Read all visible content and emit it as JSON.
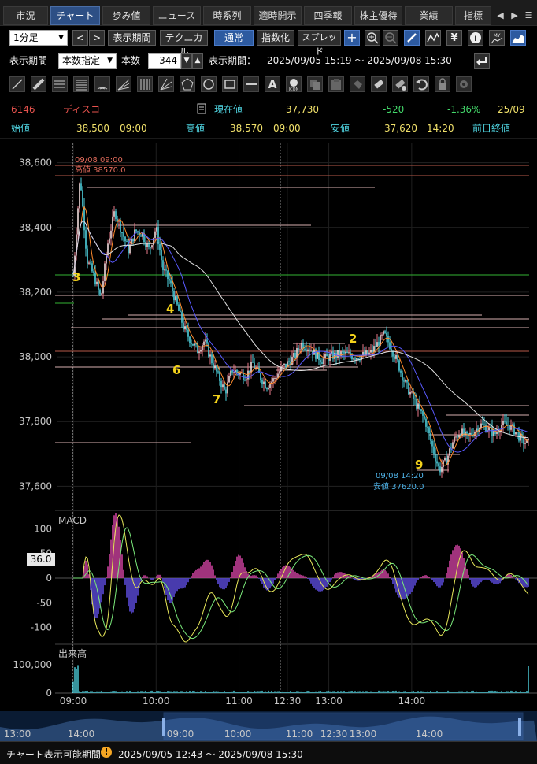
{
  "tabs": [
    {
      "label": "市況",
      "active": false
    },
    {
      "label": "チャート",
      "active": true
    },
    {
      "label": "歩み値",
      "active": false
    },
    {
      "label": "ニュース",
      "active": false
    },
    {
      "label": "時系列",
      "active": false
    },
    {
      "label": "適時開示",
      "active": false
    },
    {
      "label": "四季報",
      "active": false
    },
    {
      "label": "株主優待",
      "active": false
    },
    {
      "label": "業績",
      "active": false
    },
    {
      "label": "指標",
      "active": false
    }
  ],
  "toolbar": {
    "interval": "1分足",
    "period_button": "表示期間",
    "technical_button": "テクニカル",
    "normal_button": "通常",
    "index_button": "指数化",
    "spread_button": "スプレッド",
    "period_label": "表示期間",
    "period_mode": "本数指定",
    "count_label": "本数",
    "count_value": "344",
    "range_label": "表示期間：",
    "range_value": "2025/09/05 15:19 ～ 2025/09/08 15:30"
  },
  "quote": {
    "code": "6146",
    "name": "ディスコ",
    "current_label": "現在値",
    "current_value": "37,730",
    "change": "-520",
    "change_pct": "-1.36%",
    "date": "25/09",
    "open_label": "始値",
    "open_value": "38,500",
    "open_time": "09:00",
    "high_label": "高値",
    "high_value": "38,570",
    "high_time": "09:00",
    "low_label": "安値",
    "low_value": "37,620",
    "low_time": "14:20",
    "prev_close_label": "前日終値"
  },
  "chart_data": {
    "type": "candlestick",
    "price_ticks": [
      "38,600",
      "38,400",
      "38,200",
      "38,000",
      "37,800",
      "37,600"
    ],
    "price_range": [
      37540,
      38660
    ],
    "time_ticks": [
      "09:00",
      "10:00",
      "11:00",
      "12:30",
      "13:00",
      "14:00"
    ],
    "high_annotation": {
      "time": "09/08 09:00",
      "text": "高値 38570.0",
      "value": 38570
    },
    "low_annotation": {
      "time": "09/08 14:20",
      "text": "安値 37620.0",
      "value": 37620
    },
    "wave_labels": [
      "3",
      "4",
      "6",
      "7",
      "2",
      "9"
    ],
    "series": [
      {
        "name": "price",
        "color": "#4fd3e0"
      },
      {
        "name": "ma-short",
        "color": "#ff8c2e"
      },
      {
        "name": "ma-mid",
        "color": "#5a5aff"
      },
      {
        "name": "ma-long",
        "color": "#e0e0e0"
      }
    ],
    "close_path": [
      [
        "09:00",
        38250
      ],
      [
        "09:05",
        38560
      ],
      [
        "09:10",
        38300
      ],
      [
        "09:15",
        38250
      ],
      [
        "09:20",
        38180
      ],
      [
        "09:25",
        38350
      ],
      [
        "09:30",
        38450
      ],
      [
        "09:35",
        38390
      ],
      [
        "09:40",
        38330
      ],
      [
        "09:45",
        38390
      ],
      [
        "09:50",
        38380
      ],
      [
        "09:55",
        38330
      ],
      [
        "10:00",
        38400
      ],
      [
        "10:05",
        38270
      ],
      [
        "10:10",
        38230
      ],
      [
        "10:15",
        38160
      ],
      [
        "10:20",
        38090
      ],
      [
        "10:25",
        38050
      ],
      [
        "10:30",
        38020
      ],
      [
        "10:35",
        38050
      ],
      [
        "10:40",
        37990
      ],
      [
        "10:45",
        37940
      ],
      [
        "10:50",
        37890
      ],
      [
        "10:55",
        37960
      ],
      [
        "11:00",
        37950
      ],
      [
        "11:05",
        37940
      ],
      [
        "11:10",
        37980
      ],
      [
        "11:15",
        37940
      ],
      [
        "11:20",
        37910
      ],
      [
        "11:25",
        37930
      ],
      [
        "11:30",
        37960
      ],
      [
        "12:35",
        38000
      ],
      [
        "12:40",
        38040
      ],
      [
        "12:45",
        38030
      ],
      [
        "12:50",
        38010
      ],
      [
        "12:55",
        37990
      ],
      [
        "13:00",
        38000
      ],
      [
        "13:10",
        38010
      ],
      [
        "13:20",
        38000
      ],
      [
        "13:30",
        38010
      ],
      [
        "13:35",
        38040
      ],
      [
        "13:40",
        38070
      ],
      [
        "13:45",
        38030
      ],
      [
        "13:50",
        37980
      ],
      [
        "13:55",
        37920
      ],
      [
        "14:00",
        37880
      ],
      [
        "14:05",
        37840
      ],
      [
        "14:10",
        37800
      ],
      [
        "14:15",
        37720
      ],
      [
        "14:20",
        37650
      ],
      [
        "14:25",
        37680
      ],
      [
        "14:30",
        37740
      ],
      [
        "14:35",
        37770
      ],
      [
        "14:40",
        37750
      ],
      [
        "14:45",
        37770
      ],
      [
        "14:50",
        37790
      ],
      [
        "14:55",
        37780
      ],
      [
        "15:00",
        37760
      ],
      [
        "15:05",
        37790
      ],
      [
        "15:10",
        37790
      ],
      [
        "15:15",
        37770
      ],
      [
        "15:20",
        37740
      ],
      [
        "15:25",
        37730
      ]
    ],
    "macd": {
      "label": "MACD",
      "ticks": [
        "100",
        "50",
        "0",
        "-50",
        "-100"
      ],
      "range": [
        -110,
        110
      ],
      "current": "36.0"
    },
    "volume": {
      "label": "出来高",
      "ticks": [
        "100,000",
        "0"
      ],
      "range": [
        0,
        120000
      ]
    },
    "overview_ticks": [
      "13:00",
      "14:00",
      "09:00",
      "10:00",
      "11:00",
      "12:30",
      "13:00",
      "14:00"
    ]
  },
  "status": {
    "label": "チャート表示可能期間",
    "range": "2025/09/05 12:43 ～ 2025/09/08 15:30"
  }
}
